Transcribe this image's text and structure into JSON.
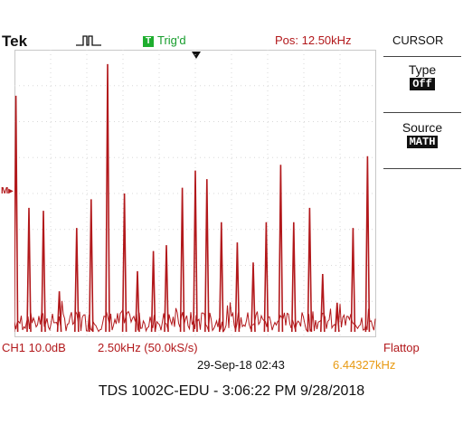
{
  "header": {
    "brand": "Tek",
    "trigger_status": "Trig'd",
    "trigger_box": "T",
    "position": "Pos: 12.50kHz"
  },
  "menu": {
    "title": "CURSOR",
    "type_label": "Type",
    "type_value": "Off",
    "source_label": "Source",
    "source_value": "MATH"
  },
  "readouts": {
    "channel": "CH1 10.0dB",
    "horizontal": "2.50kHz (50.0kS/s)",
    "window": "Flattop",
    "datetime": "29-Sep-18 02:43",
    "frequency": "6.44327kHz",
    "marker": "M"
  },
  "caption": "TDS 1002C-EDU - 3:06:22 PM   9/28/2018",
  "colors": {
    "trace": "#b2181b",
    "trigger": "#1fae2f",
    "frequency": "#e89a12"
  },
  "chart_data": {
    "type": "line",
    "x_range_kHz": [
      0,
      25
    ],
    "y_scale": "10.0dB per division",
    "grid": true,
    "peaks": [
      {
        "x_kHz": 0.1,
        "level": 0.84
      },
      {
        "x_kHz": 1.0,
        "level": 0.45
      },
      {
        "x_kHz": 2.0,
        "level": 0.44
      },
      {
        "x_kHz": 3.1,
        "level": 0.16
      },
      {
        "x_kHz": 4.3,
        "level": 0.38
      },
      {
        "x_kHz": 5.3,
        "level": 0.48
      },
      {
        "x_kHz": 6.44,
        "level": 0.95
      },
      {
        "x_kHz": 7.6,
        "level": 0.5
      },
      {
        "x_kHz": 8.5,
        "level": 0.23
      },
      {
        "x_kHz": 9.6,
        "level": 0.3
      },
      {
        "x_kHz": 10.5,
        "level": 0.32
      },
      {
        "x_kHz": 11.6,
        "level": 0.52
      },
      {
        "x_kHz": 12.5,
        "level": 0.58
      },
      {
        "x_kHz": 13.3,
        "level": 0.55
      },
      {
        "x_kHz": 14.3,
        "level": 0.4
      },
      {
        "x_kHz": 15.4,
        "level": 0.33
      },
      {
        "x_kHz": 16.5,
        "level": 0.26
      },
      {
        "x_kHz": 17.4,
        "level": 0.4
      },
      {
        "x_kHz": 18.4,
        "level": 0.6
      },
      {
        "x_kHz": 19.3,
        "level": 0.4
      },
      {
        "x_kHz": 20.4,
        "level": 0.45
      },
      {
        "x_kHz": 21.3,
        "level": 0.22
      },
      {
        "x_kHz": 22.3,
        "level": 0.12
      },
      {
        "x_kHz": 23.4,
        "level": 0.38
      },
      {
        "x_kHz": 24.4,
        "level": 0.63
      }
    ]
  }
}
